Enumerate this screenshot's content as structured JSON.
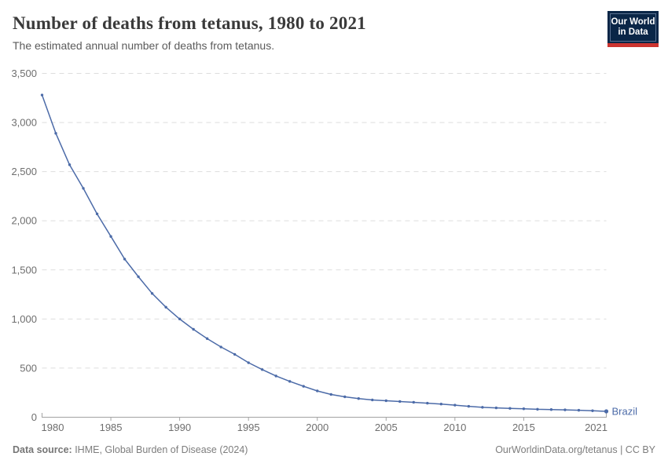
{
  "header": {
    "title": "Number of deaths from tetanus, 1980 to 2021",
    "subtitle": "The estimated annual number of deaths from tetanus."
  },
  "logo": {
    "line1": "Our World",
    "line2": "in Data"
  },
  "chart_data": {
    "type": "line",
    "title": "Number of deaths from tetanus, 1980 to 2021",
    "xlabel": "",
    "ylabel": "",
    "xlim": [
      1980,
      2021
    ],
    "ylim": [
      0,
      3500
    ],
    "xticks": [
      1980,
      1985,
      1990,
      1995,
      2000,
      2005,
      2010,
      2015,
      2021
    ],
    "yticks": [
      0,
      500,
      1000,
      1500,
      2000,
      2500,
      3000,
      3500
    ],
    "grid": "horizontal-dashed",
    "legend_position": "end-of-line-label",
    "series": [
      {
        "name": "Brazil",
        "color": "#4C6BA8",
        "x": [
          1980,
          1981,
          1982,
          1983,
          1984,
          1985,
          1986,
          1987,
          1988,
          1989,
          1990,
          1991,
          1992,
          1993,
          1994,
          1995,
          1996,
          1997,
          1998,
          1999,
          2000,
          2001,
          2002,
          2003,
          2004,
          2005,
          2006,
          2007,
          2008,
          2009,
          2010,
          2011,
          2012,
          2013,
          2014,
          2015,
          2016,
          2017,
          2018,
          2019,
          2020,
          2021
        ],
        "values": [
          3280,
          2890,
          2570,
          2330,
          2070,
          1840,
          1610,
          1430,
          1260,
          1120,
          1000,
          895,
          800,
          715,
          640,
          555,
          485,
          420,
          365,
          315,
          268,
          232,
          208,
          190,
          176,
          168,
          160,
          152,
          143,
          134,
          123,
          111,
          101,
          95,
          90,
          86,
          81,
          78,
          75,
          71,
          66,
          60
        ]
      }
    ]
  },
  "footer": {
    "source_label": "Data source:",
    "source_value": " IHME, Global Burden of Disease (2024)",
    "credit": "OurWorldinData.org/tetanus | CC BY"
  },
  "colors": {
    "line": "#4C6BA8",
    "grid": "#DDDDDD",
    "axis": "#A3A3A3",
    "tick_text": "#6E6E6E",
    "series_label": "#4C6BA8",
    "logo_bg": "#0A2647",
    "logo_accent": "#CC3430"
  }
}
